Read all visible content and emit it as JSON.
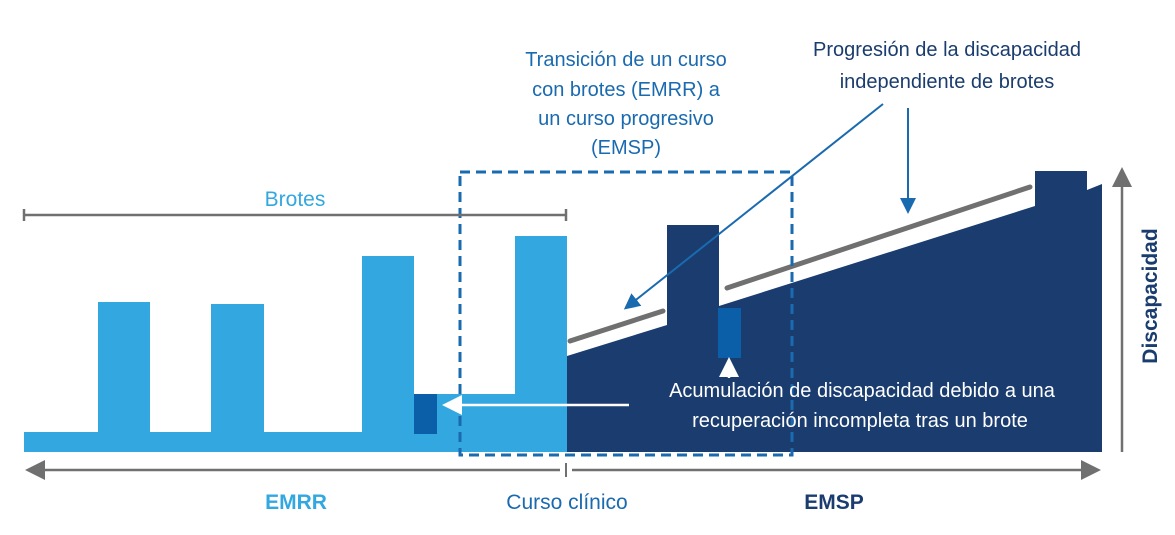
{
  "labels": {
    "transition": [
      "Transición de un curso",
      "con brotes (EMRR) a",
      "un curso progresivo",
      "(EMSP)"
    ],
    "progression": [
      "Progresión de la discapacidad",
      "independiente de brotes"
    ],
    "brotes": "Brotes",
    "accumulation": [
      "Acumulación de discapacidad debido a una",
      "recuperación incompleta tras un brote"
    ],
    "emrr": "EMRR",
    "curso_clinico": "Curso clínico",
    "emsp": "EMSP",
    "y_axis": "Discapacidad"
  },
  "colors": {
    "emrr": "#33a7df",
    "emsp": "#1a3c6e",
    "accumulation": "#0a5fa8",
    "annotation": "#1a6ab0",
    "gray": "#707070"
  }
}
